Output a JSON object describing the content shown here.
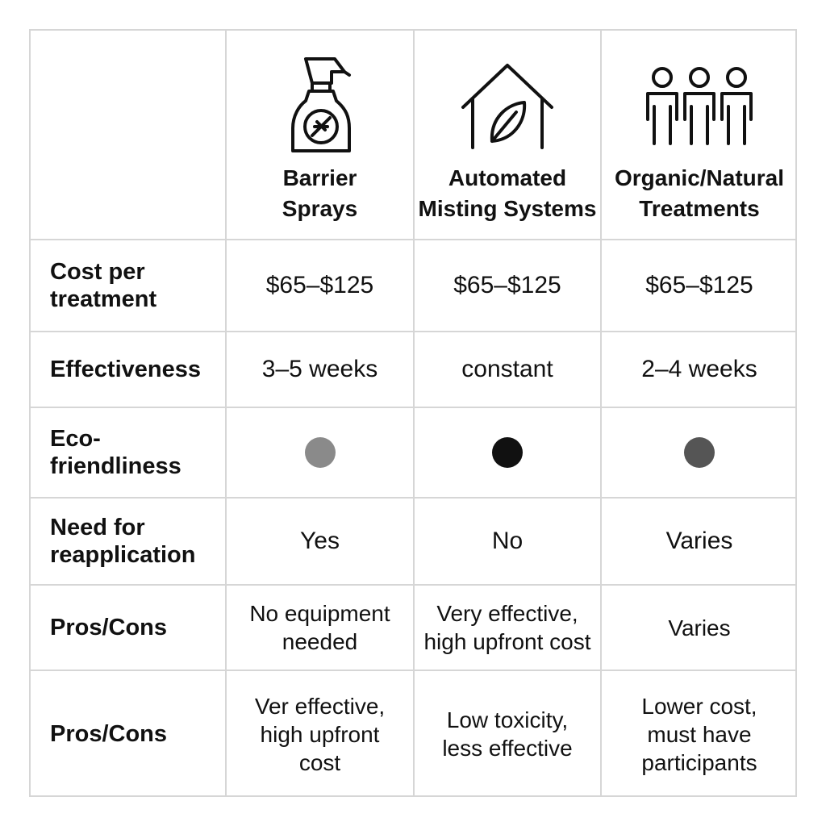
{
  "header": {
    "col1": "Barrier\nSprays",
    "col2": "Automated\nMisting Systems",
    "col3": "Organic/Natural\nTreatments",
    "icons": [
      "spray-bottle-icon",
      "house-leaf-icon",
      "people-icon"
    ]
  },
  "rows": {
    "cost": {
      "label": "Cost per\ntreatment",
      "values": [
        "$65–$125",
        "$65–$125",
        "$65–$125"
      ]
    },
    "effectiveness": {
      "label": "Effectiveness",
      "values": [
        "3–5 weeks",
        "constant",
        "2–4 weeks"
      ]
    },
    "eco": {
      "label": "Eco-\nfriendliness",
      "dot_colors": [
        "#8a8a8a",
        "#111111",
        "#555555"
      ]
    },
    "reapply": {
      "label": "Need for\nreapplication",
      "values": [
        "Yes",
        "No",
        "Varies"
      ]
    },
    "pros1": {
      "label": "Pros/Cons",
      "values": [
        "No equipment\nneeded",
        "Very effective,\nhigh upfront cost",
        "Varies"
      ]
    },
    "pros2": {
      "label": "Pros/Cons",
      "values": [
        "Ver effective,\nhigh upfront\ncost",
        "Low toxicity,\nless effective",
        "Lower cost,\nmust have\nparticipants"
      ]
    }
  },
  "colors": {
    "border": "#d6d6d6",
    "text": "#111111"
  }
}
